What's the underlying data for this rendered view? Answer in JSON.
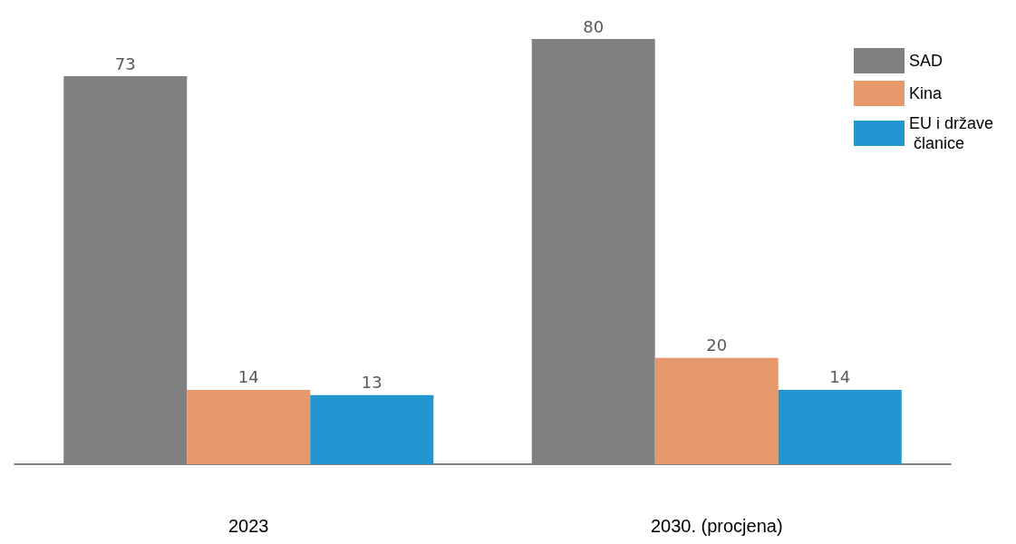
{
  "chart_data": {
    "type": "bar",
    "categories": [
      "2023",
      "2030. (procjena)"
    ],
    "series": [
      {
        "name": "SAD",
        "color": "#808080",
        "values": [
          73,
          80
        ]
      },
      {
        "name": "Kina",
        "color": "#e8996b",
        "values": [
          14,
          20
        ]
      },
      {
        "name": "EU i države članice",
        "color": "#2196d0",
        "values": [
          13,
          14
        ]
      }
    ],
    "data_labels": true,
    "legend": "top right",
    "grid": false
  }
}
